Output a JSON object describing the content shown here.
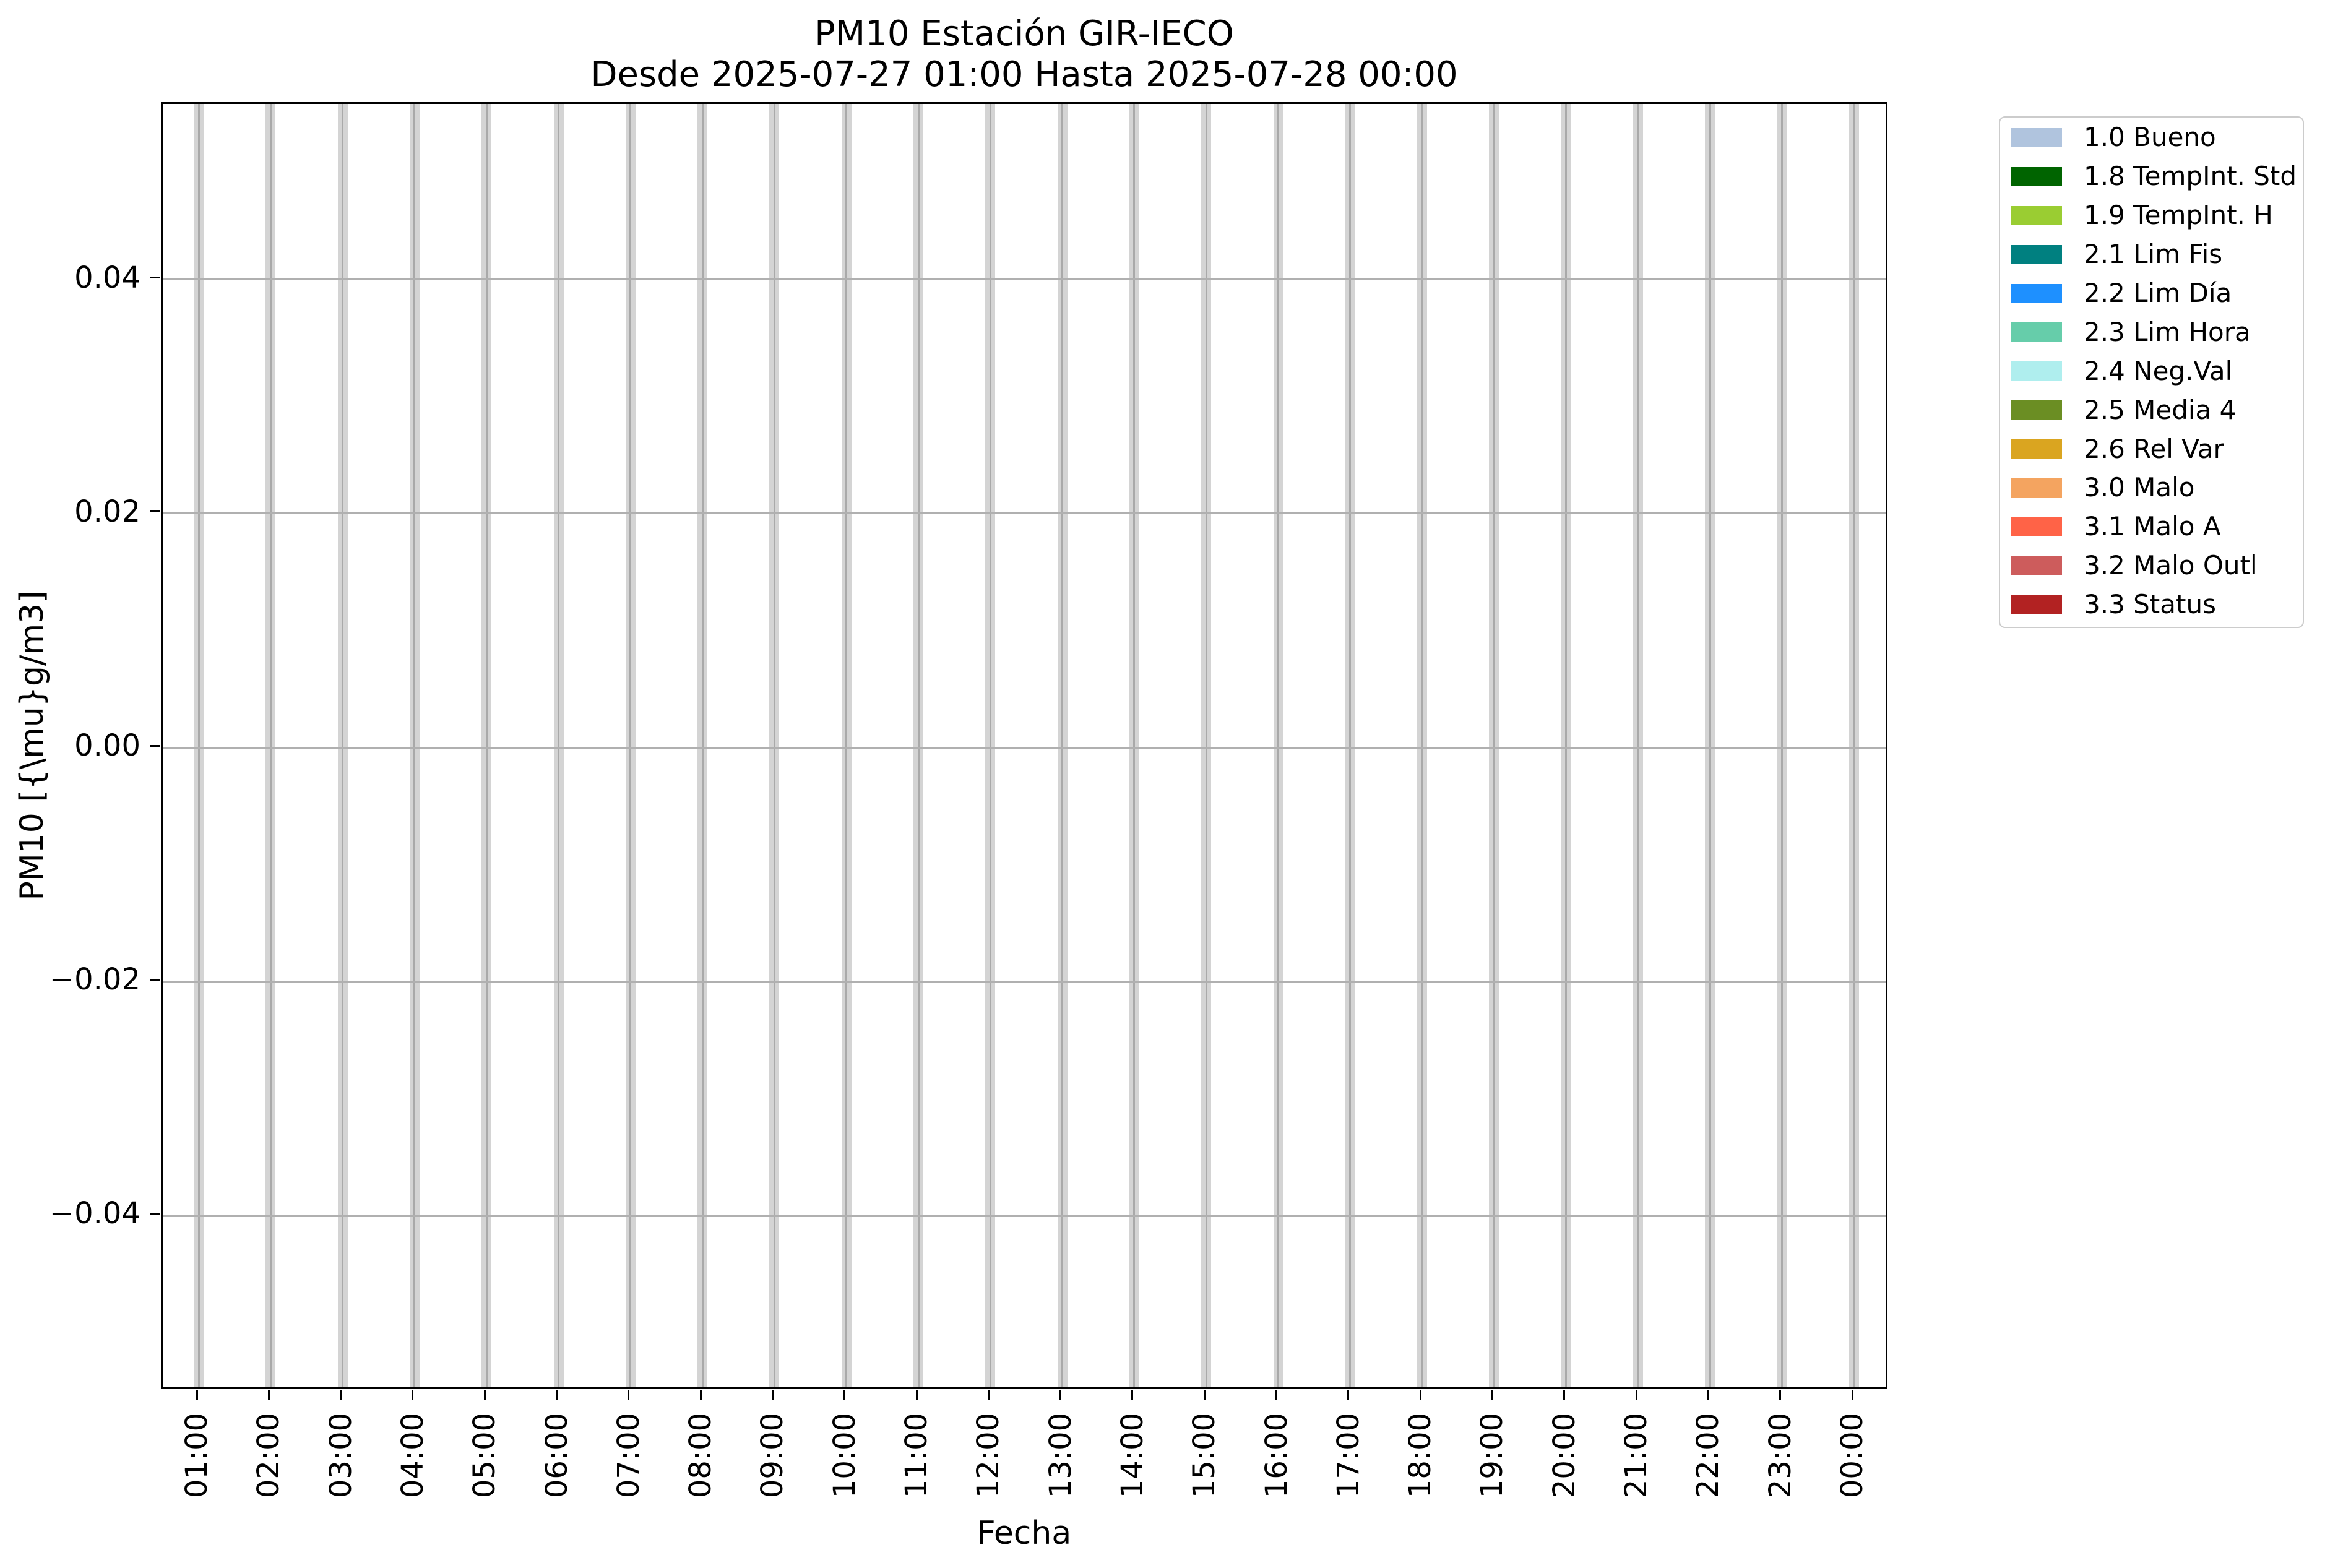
{
  "chart_data": {
    "type": "bar",
    "title": "PM10 Estación GIR-IECO",
    "subtitle": "Desde 2025-07-27 01:00 Hasta 2025-07-28 00:00",
    "xlabel": "Fecha",
    "ylabel": "PM10 [{\\mu}g/m3]",
    "categories": [
      "01:00",
      "02:00",
      "03:00",
      "04:00",
      "05:00",
      "06:00",
      "07:00",
      "08:00",
      "09:00",
      "10:00",
      "11:00",
      "12:00",
      "13:00",
      "14:00",
      "15:00",
      "16:00",
      "17:00",
      "18:00",
      "19:00",
      "20:00",
      "21:00",
      "22:00",
      "23:00",
      "00:00"
    ],
    "ylim": [
      -0.055,
      0.055
    ],
    "yticks": {
      "values": [
        0.04,
        0.02,
        0.0,
        -0.02,
        -0.04
      ],
      "labels": [
        "0.04",
        "0.02",
        "0.00",
        "−0.02",
        "−0.04"
      ]
    },
    "grid": true,
    "legend_position": "upper right, outside plot",
    "series": [
      {
        "name": "1.0 Bueno",
        "color": "#b0c4de",
        "values": []
      },
      {
        "name": "1.8 TempInt. Std",
        "color": "#006400",
        "values": []
      },
      {
        "name": "1.9 TempInt. H",
        "color": "#9acd32",
        "values": []
      },
      {
        "name": "2.1 Lim Fis",
        "color": "#008080",
        "values": []
      },
      {
        "name": "2.2 Lim Día",
        "color": "#1e90ff",
        "values": []
      },
      {
        "name": "2.3 Lim Hora",
        "color": "#66cdaa",
        "values": []
      },
      {
        "name": "2.4 Neg.Val",
        "color": "#afeeee",
        "values": []
      },
      {
        "name": "2.5 Media 4",
        "color": "#6b8e23",
        "values": []
      },
      {
        "name": "2.6 Rel Var",
        "color": "#daa520",
        "values": []
      },
      {
        "name": "3.0 Malo",
        "color": "#f4a460",
        "values": []
      },
      {
        "name": "3.1 Malo A",
        "color": "#ff6347",
        "values": []
      },
      {
        "name": "3.2 Malo Outl",
        "color": "#cd5c5c",
        "values": []
      },
      {
        "name": "3.3 Status",
        "color": "#b22222",
        "values": []
      }
    ]
  }
}
